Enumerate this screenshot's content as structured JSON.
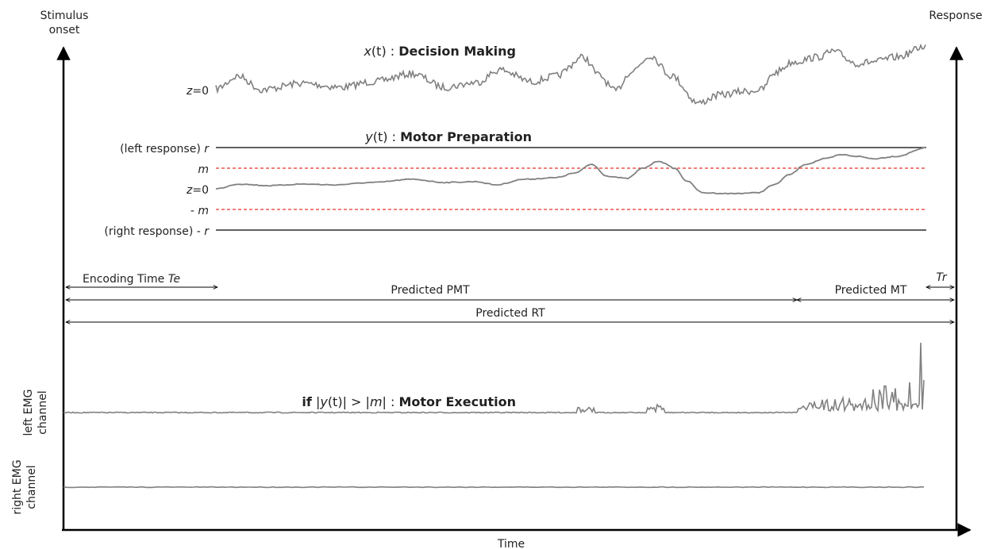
{
  "labels": {
    "stimulus_onset_line1": "Stimulus",
    "stimulus_onset_line2": "onset",
    "response": "Response",
    "time": "Time",
    "left_emg_line1": "left EMG",
    "left_emg_line2": "channel",
    "right_emg_line1": "right EMG",
    "right_emg_line2": "channel"
  },
  "decision": {
    "var": "x",
    "arg": "(t)",
    "colon": " : ",
    "title": "Decision Making",
    "baseline_z": "z",
    "baseline_eq": "=0"
  },
  "motor_prep": {
    "var": "y",
    "arg": "(t)",
    "colon": " : ",
    "title": "Motor Preparation",
    "left_response_prefix": "(left response) ",
    "left_response_sym": "r",
    "m_upper": "m",
    "baseline_z": "z",
    "baseline_eq": "=0",
    "m_lower_prefix": "- ",
    "m_lower_sym": "m",
    "right_response_prefix": "(right response) - ",
    "right_response_sym": "r",
    "threshold_color": "#e8332a"
  },
  "intervals": {
    "encoding_prefix": "Encoding Time ",
    "encoding_sym": "Te",
    "pmt": "Predicted PMT",
    "mt": "Predicted MT",
    "tr": "Tr",
    "rt": "Predicted RT"
  },
  "motor_exec": {
    "if_kw": "if",
    "cond_open": " |",
    "cond_y": "y",
    "cond_mid": "(t)| > |",
    "cond_m": "m",
    "cond_close": "| : ",
    "title": "Motor Execution"
  },
  "colors": {
    "trace": "#808080",
    "axis": "#000000"
  }
}
